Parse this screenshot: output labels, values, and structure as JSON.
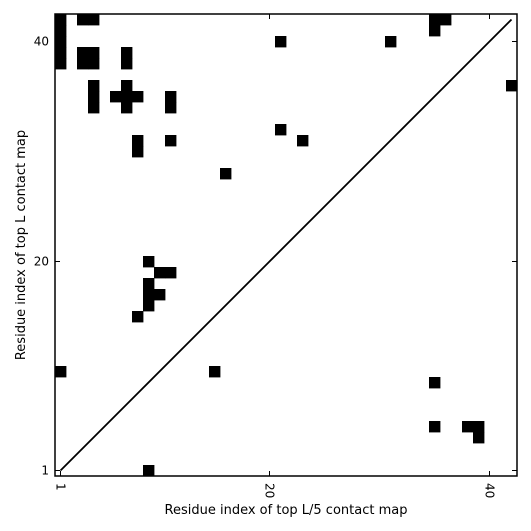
{
  "chart_data": {
    "type": "heatmap",
    "xlabel": "Residue index of top L/5 contact map",
    "ylabel": "Residue index of top L contact map",
    "xlim": [
      0.5,
      42.5
    ],
    "ylim": [
      0.5,
      42.5
    ],
    "x_ticks": [
      1,
      20,
      40
    ],
    "y_ticks": [
      1,
      20,
      40
    ],
    "x_tick_labels": [
      "1",
      "20",
      "40"
    ],
    "y_tick_labels": [
      "1",
      "20",
      "40"
    ],
    "x_tick_rotation": 90,
    "diagonal": [
      [
        1,
        1
      ],
      [
        42,
        42
      ]
    ],
    "cell_color": "#000000",
    "cells": [
      [
        1,
        42
      ],
      [
        1,
        41
      ],
      [
        1,
        40
      ],
      [
        1,
        39
      ],
      [
        1,
        38
      ],
      [
        3,
        42
      ],
      [
        4,
        42
      ],
      [
        3,
        39
      ],
      [
        3,
        38
      ],
      [
        4,
        39
      ],
      [
        4,
        38
      ],
      [
        4,
        36
      ],
      [
        4,
        35
      ],
      [
        4,
        34
      ],
      [
        7,
        39
      ],
      [
        7,
        38
      ],
      [
        6,
        35
      ],
      [
        7,
        36
      ],
      [
        7,
        35
      ],
      [
        7,
        34
      ],
      [
        8,
        35
      ],
      [
        8,
        31
      ],
      [
        8,
        30
      ],
      [
        11,
        35
      ],
      [
        11,
        34
      ],
      [
        11,
        31
      ],
      [
        16,
        28
      ],
      [
        21,
        40
      ],
      [
        21,
        32
      ],
      [
        23,
        31
      ],
      [
        31,
        40
      ],
      [
        35,
        42
      ],
      [
        35,
        41
      ],
      [
        36,
        42
      ],
      [
        42,
        36
      ],
      [
        9,
        20
      ],
      [
        10,
        19
      ],
      [
        11,
        19
      ],
      [
        9,
        18
      ],
      [
        9,
        17
      ],
      [
        10,
        17
      ],
      [
        9,
        16
      ],
      [
        8,
        15
      ],
      [
        1,
        10
      ],
      [
        15,
        10
      ],
      [
        35,
        9
      ],
      [
        35,
        5
      ],
      [
        38,
        5
      ],
      [
        39,
        5
      ],
      [
        39,
        4
      ],
      [
        9,
        1
      ]
    ]
  }
}
